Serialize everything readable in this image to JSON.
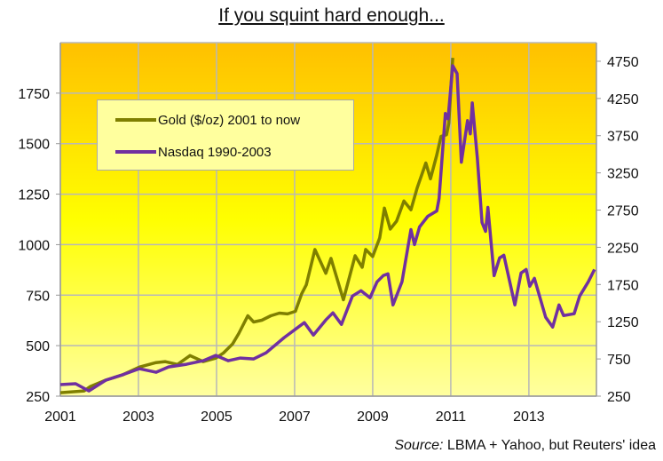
{
  "title": "If you squint hard enough...",
  "source_prefix": "Source:",
  "source_text": " LBMA + Yahoo, but Reuters' idea",
  "colors": {
    "gold": "#7F7F00",
    "nasdaq": "#7030A0",
    "grid": "#B8B8B8",
    "bg_top": "#FFC000",
    "bg_mid": "#FFFF00",
    "bg_bottom": "#FFFFA0"
  },
  "chart_data": {
    "type": "line",
    "title": "If you squint hard enough...",
    "xlabel": "",
    "ylabel": "",
    "y2label": "",
    "xlim": [
      2001,
      2014.73
    ],
    "ylim": [
      250,
      2000
    ],
    "y2lim": [
      250,
      5000
    ],
    "x_ticks": [
      "2001",
      "2003",
      "2005",
      "2007",
      "2009",
      "2011",
      "2013"
    ],
    "x_tick_values": [
      2001,
      2003,
      2005,
      2007,
      2009,
      2011,
      2013
    ],
    "y_ticks": [
      "250",
      "500",
      "750",
      "1000",
      "1250",
      "1500",
      "1750"
    ],
    "y_tick_values": [
      250,
      500,
      750,
      1000,
      1250,
      1500,
      1750
    ],
    "y2_ticks": [
      "250",
      "750",
      "1250",
      "1750",
      "2250",
      "2750",
      "3250",
      "3750",
      "4250",
      "4750"
    ],
    "y2_tick_values": [
      250,
      750,
      1250,
      1750,
      2250,
      2750,
      3250,
      3750,
      4250,
      4750
    ],
    "grid": true,
    "legend_position": "top-left",
    "series": [
      {
        "name": "Gold ($/oz) 2001 to now",
        "axis": "left",
        "x": [
          2001.0,
          2001.61,
          2001.77,
          2002.16,
          2002.59,
          2003.02,
          2003.45,
          2003.68,
          2004.0,
          2004.32,
          2004.66,
          2004.98,
          2005.18,
          2005.41,
          2005.57,
          2005.8,
          2005.95,
          2006.16,
          2006.39,
          2006.61,
          2006.82,
          2007.02,
          2007.18,
          2007.3,
          2007.52,
          2007.8,
          2007.93,
          2008.25,
          2008.55,
          2008.73,
          2008.82,
          2009.0,
          2009.18,
          2009.3,
          2009.45,
          2009.61,
          2009.8,
          2009.98,
          2010.14,
          2010.36,
          2010.48,
          2010.64,
          2010.75,
          2010.89,
          2010.95,
          2011.05
        ],
        "values": [
          267,
          276,
          298,
          329,
          355,
          394,
          416,
          421,
          407,
          451,
          421,
          438,
          464,
          508,
          560,
          648,
          617,
          626,
          648,
          661,
          657,
          670,
          757,
          801,
          976,
          858,
          932,
          727,
          945,
          888,
          976,
          941,
          1033,
          1181,
          1077,
          1116,
          1216,
          1173,
          1282,
          1404,
          1326,
          1444,
          1536,
          1544,
          1601,
          1925
        ]
      },
      {
        "name": "Nasdaq 1990-2003",
        "axis": "right",
        "x": [
          2001.0,
          2001.39,
          2001.73,
          2002.16,
          2002.59,
          2003.02,
          2003.45,
          2003.77,
          2004.23,
          2004.66,
          2004.98,
          2005.3,
          2005.61,
          2005.95,
          2006.27,
          2006.73,
          2007.25,
          2007.48,
          2007.8,
          2007.98,
          2008.2,
          2008.48,
          2008.7,
          2008.93,
          2009.11,
          2009.27,
          2009.39,
          2009.52,
          2009.75,
          2009.98,
          2010.07,
          2010.2,
          2010.41,
          2010.64,
          2010.7,
          2010.86,
          2010.93,
          2011.05,
          2011.16,
          2011.27,
          2011.43,
          2011.5,
          2011.55,
          2011.68,
          2011.8,
          2011.89,
          2011.95,
          2012.11,
          2012.25,
          2012.36,
          2012.64,
          2012.8,
          2012.93,
          2013.02,
          2013.14,
          2013.43,
          2013.61,
          2013.77,
          2013.89,
          2014.16,
          2014.3,
          2014.52,
          2014.68
        ],
        "values": [
          405,
          417,
          321,
          464,
          536,
          619,
          571,
          643,
          679,
          726,
          798,
          726,
          762,
          750,
          833,
          1036,
          1238,
          1071,
          1274,
          1369,
          1214,
          1595,
          1667,
          1571,
          1786,
          1869,
          1893,
          1476,
          1786,
          2488,
          2286,
          2524,
          2667,
          2738,
          2905,
          4048,
          3976,
          4690,
          4583,
          3393,
          3952,
          3774,
          4190,
          3452,
          2583,
          2464,
          2786,
          1869,
          2107,
          2143,
          1476,
          1905,
          1952,
          1726,
          1833,
          1310,
          1179,
          1476,
          1333,
          1357,
          1595,
          1786,
          1952
        ]
      }
    ]
  }
}
